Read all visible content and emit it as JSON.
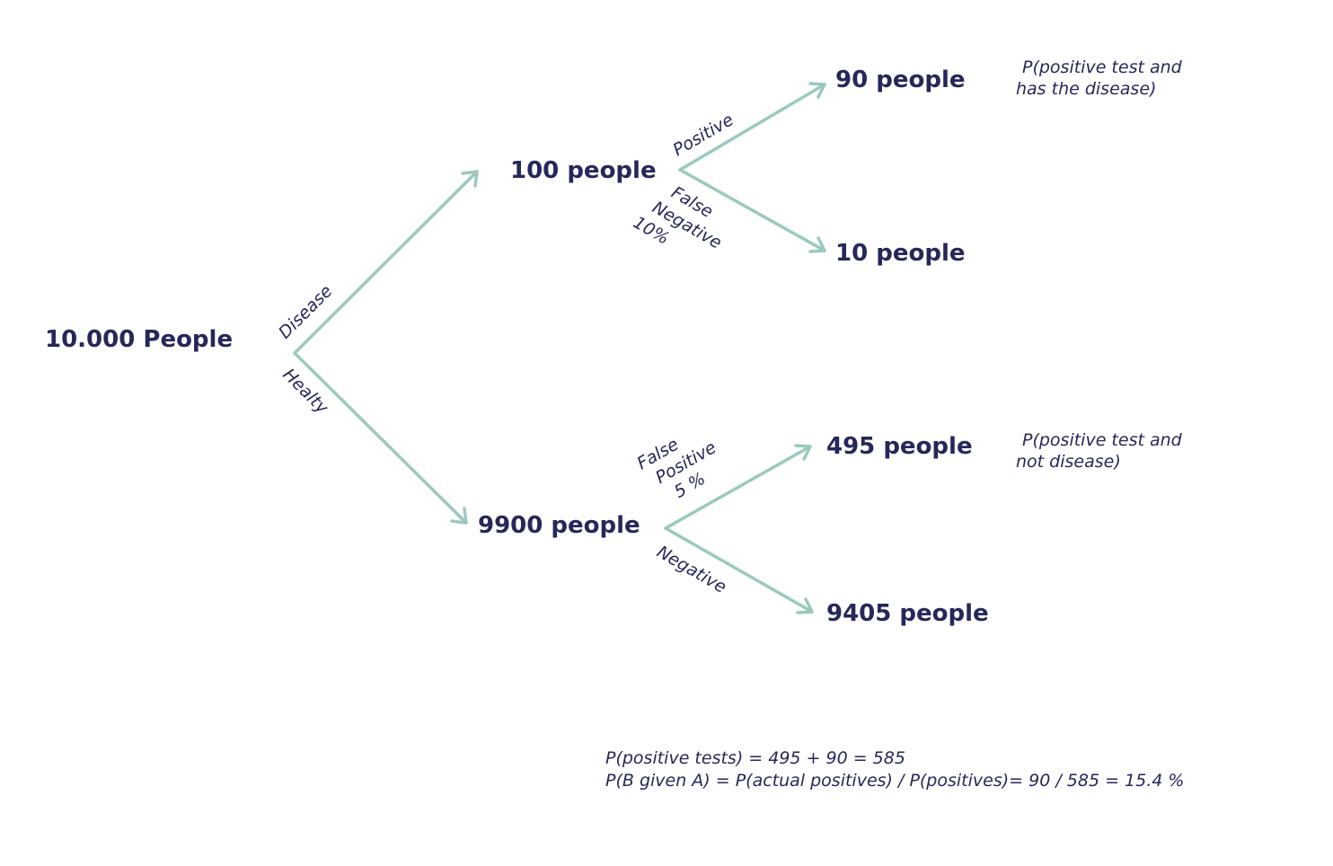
{
  "nodes": {
    "root": "10.000 People",
    "disease": "100 people",
    "healthy": "9900 people",
    "true_positive": "90 people",
    "false_negative": "10 people",
    "false_positive": "495 people",
    "true_negative": "9405 people"
  },
  "branches": {
    "disease": "Disease",
    "healthy": "Healty",
    "positive": "Positive",
    "false_negative": [
      "False",
      "Negative",
      "10%"
    ],
    "false_positive": [
      "False",
      "Positive",
      "5 %"
    ],
    "negative": "Negative"
  },
  "notes": {
    "tp": [
      "P(positive test and",
      "has the disease)"
    ],
    "fp": [
      "P(positive test and",
      "not disease)"
    ]
  },
  "formulas": [
    "P(positive tests) = 495 + 90 = 585",
    "P(B given A) = P(actual positives) / P(positives)= 90 / 585 = 15.4 %"
  ],
  "colors": {
    "arrow": "#9cc9bd",
    "text": "#26275a"
  }
}
